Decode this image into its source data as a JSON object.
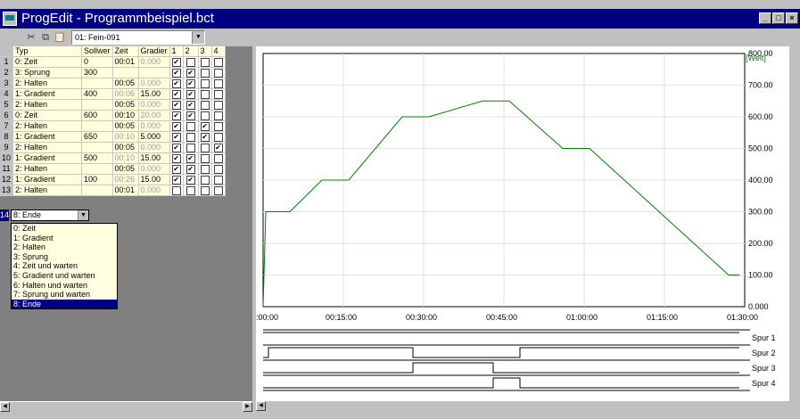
{
  "window": {
    "title": "ProgEdit - Programmbeispiel.bct"
  },
  "toolbar": {
    "program_select": "01: Fein-091"
  },
  "columns": [
    "Typ",
    "Sollwer",
    "Zeit",
    "Gradier",
    "1",
    "2",
    "3",
    "4"
  ],
  "rows": [
    {
      "n": "1",
      "typ": "0: Zeit",
      "soll": "0",
      "zeit": "00:01",
      "zeit_dim": false,
      "grad": "0.000",
      "grad_dim": true,
      "c": [
        true,
        false,
        false,
        false
      ]
    },
    {
      "n": "2",
      "typ": "3: Sprung",
      "soll": "300",
      "zeit": "",
      "zeit_dim": false,
      "grad": "",
      "grad_dim": false,
      "c": [
        true,
        true,
        false,
        false
      ]
    },
    {
      "n": "3",
      "typ": "2: Halten",
      "soll": "",
      "zeit": "00:05",
      "zeit_dim": false,
      "grad": "0.000",
      "grad_dim": true,
      "c": [
        true,
        true,
        false,
        false
      ]
    },
    {
      "n": "4",
      "typ": "1: Gradient",
      "soll": "400",
      "zeit": "00:06",
      "zeit_dim": true,
      "grad": "15.00",
      "grad_dim": false,
      "c": [
        true,
        true,
        false,
        false
      ]
    },
    {
      "n": "5",
      "typ": "2: Halten",
      "soll": "",
      "zeit": "00:05",
      "zeit_dim": false,
      "grad": "0.000",
      "grad_dim": true,
      "c": [
        true,
        true,
        false,
        false
      ]
    },
    {
      "n": "6",
      "typ": "0: Zeit",
      "soll": "600",
      "zeit": "00:10",
      "zeit_dim": false,
      "grad": "20.00",
      "grad_dim": true,
      "c": [
        true,
        true,
        false,
        false
      ]
    },
    {
      "n": "7",
      "typ": "2: Halten",
      "soll": "",
      "zeit": "00:05",
      "zeit_dim": false,
      "grad": "0.000",
      "grad_dim": true,
      "c": [
        true,
        false,
        true,
        false
      ]
    },
    {
      "n": "8",
      "typ": "1: Gradient",
      "soll": "650",
      "zeit": "00:10",
      "zeit_dim": true,
      "grad": "5.000",
      "grad_dim": false,
      "c": [
        true,
        false,
        true,
        false
      ]
    },
    {
      "n": "9",
      "typ": "2: Halten",
      "soll": "",
      "zeit": "00:05",
      "zeit_dim": false,
      "grad": "0.000",
      "grad_dim": true,
      "c": [
        true,
        false,
        false,
        true
      ]
    },
    {
      "n": "10",
      "typ": "1: Gradient",
      "soll": "500",
      "zeit": "00:10",
      "zeit_dim": true,
      "grad": "15.00",
      "grad_dim": false,
      "c": [
        true,
        true,
        false,
        false
      ]
    },
    {
      "n": "11",
      "typ": "2: Halten",
      "soll": "",
      "zeit": "00:05",
      "zeit_dim": false,
      "grad": "0.000",
      "grad_dim": true,
      "c": [
        true,
        true,
        false,
        false
      ]
    },
    {
      "n": "12",
      "typ": "1: Gradient",
      "soll": "100",
      "zeit": "00:26",
      "zeit_dim": true,
      "grad": "15.00",
      "grad_dim": false,
      "c": [
        true,
        true,
        false,
        false
      ]
    },
    {
      "n": "13",
      "typ": "2: Halten",
      "soll": "",
      "zeit": "00:01",
      "zeit_dim": false,
      "grad": "0.000",
      "grad_dim": true,
      "c": [
        false,
        false,
        false,
        false
      ]
    }
  ],
  "edit_row": {
    "n": "14",
    "value": "8: Ende"
  },
  "dropdown": {
    "options": [
      "0: Zeit",
      "1: Gradient",
      "2: Halten",
      "3: Sprung",
      "4: Zeit und warten",
      "5: Gradient und warten",
      "6: Halten und warten",
      "7: Sprung und warten",
      "8: Ende"
    ],
    "selected_index": 8
  },
  "chart_data": {
    "type": "line",
    "unit_label": "[Welt]",
    "ylim": [
      0,
      800
    ],
    "y_ticks": [
      "800.00",
      "700.00",
      "600.00",
      "500.00",
      "400.00",
      "300.00",
      "200.00",
      "100.00",
      "0.000"
    ],
    "x_ticks": [
      ":00:00",
      "00:15:00",
      "00:30:00",
      "00:45:00",
      "01:00:00",
      "01:15:00",
      "01:30:00"
    ],
    "xlim_minutes": [
      0,
      90
    ],
    "grid": true,
    "series": [
      {
        "color": "#008000",
        "x_minutes": [
          0,
          0.5,
          1,
          5,
          11,
          16,
          26,
          31,
          41,
          46,
          56,
          61,
          87,
          89
        ],
        "y": [
          0,
          300,
          300,
          300,
          400,
          400,
          600,
          600,
          650,
          650,
          500,
          500,
          100,
          100
        ]
      }
    ]
  },
  "tracks": [
    {
      "label": "Spur 1",
      "segments": [
        [
          0,
          89,
          1
        ]
      ]
    },
    {
      "label": "Spur 2",
      "segments": [
        [
          0,
          1,
          0
        ],
        [
          1,
          28,
          1
        ],
        [
          28,
          48,
          0
        ],
        [
          48,
          89,
          1
        ]
      ]
    },
    {
      "label": "Spur 3",
      "segments": [
        [
          0,
          28,
          0
        ],
        [
          28,
          43,
          1
        ],
        [
          43,
          89,
          0
        ]
      ]
    },
    {
      "label": "Spur 4",
      "segments": [
        [
          0,
          43,
          0
        ],
        [
          43,
          48,
          1
        ],
        [
          48,
          89,
          0
        ]
      ]
    }
  ]
}
